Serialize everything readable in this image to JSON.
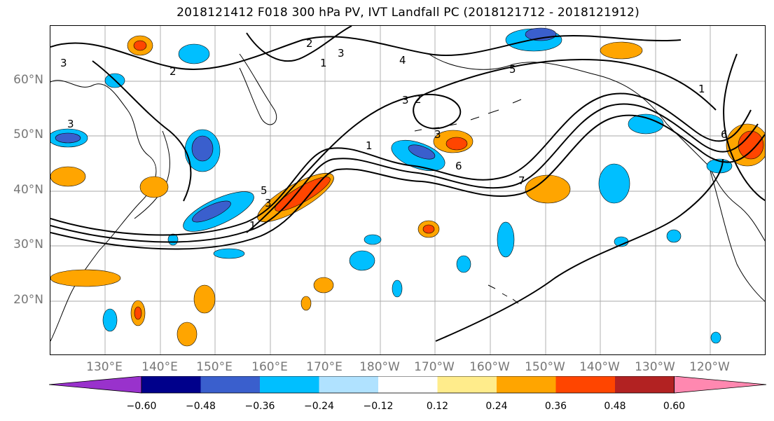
{
  "title": "2018121412 F018 300 hPa PV, IVT Landfall PC (2018121712 - 2018121912)",
  "lat_labels": [
    {
      "text": "60°N",
      "deg": 60
    },
    {
      "text": "50°N",
      "deg": 50
    },
    {
      "text": "40°N",
      "deg": 40
    },
    {
      "text": "30°N",
      "deg": 30
    },
    {
      "text": "20°N",
      "deg": 20
    }
  ],
  "lon_labels": [
    {
      "text": "130°E",
      "deg": 130
    },
    {
      "text": "140°E",
      "deg": 140
    },
    {
      "text": "150°E",
      "deg": 150
    },
    {
      "text": "160°E",
      "deg": 160
    },
    {
      "text": "170°E",
      "deg": 170
    },
    {
      "text": "180°W",
      "deg": 180
    },
    {
      "text": "170°W",
      "deg": 190
    },
    {
      "text": "160°W",
      "deg": 200
    },
    {
      "text": "150°W",
      "deg": 210
    },
    {
      "text": "140°W",
      "deg": 220
    },
    {
      "text": "130°W",
      "deg": 230
    },
    {
      "text": "120°W",
      "deg": 240
    }
  ],
  "contour_labels": [
    "1",
    "2",
    "3",
    "4",
    "5",
    "6",
    "7"
  ],
  "colorbar": {
    "ticks": [
      "−0.60",
      "−0.48",
      "−0.36",
      "−0.24",
      "−0.12",
      "0.12",
      "0.24",
      "0.36",
      "0.48",
      "0.60"
    ],
    "colors": [
      "#9932CC",
      "#00008B",
      "#3A5FCD",
      "#00BFFF",
      "#B0E2FF",
      "#FFFFFF",
      "#FFEC8B",
      "#FFA500",
      "#FF4500",
      "#B22222",
      "#FF88B0"
    ]
  }
}
